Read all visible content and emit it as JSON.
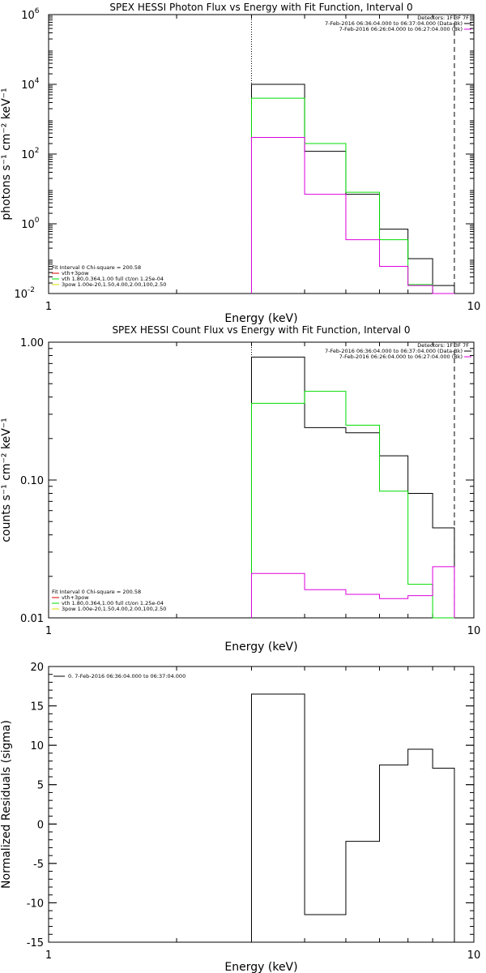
{
  "chart_data": [
    {
      "type": "line",
      "title": "SPEX HESSI Photon Flux vs Energy with Fit Function, Interval 0",
      "xlabel": "Energy (keV)",
      "ylabel": "photons s⁻¹ cm⁻² keV⁻¹",
      "xscale": "log",
      "yscale": "log",
      "xlim": [
        1,
        10
      ],
      "ylim": [
        0.01,
        1000000
      ],
      "xticks": [
        {
          "v": 1,
          "t": "1"
        },
        {
          "v": 10,
          "t": "10"
        }
      ],
      "yticks": [
        {
          "v": 0.01,
          "t": "10",
          "e": "-2"
        },
        {
          "v": 1,
          "t": "10",
          "e": "0"
        },
        {
          "v": 100,
          "t": "10",
          "e": "2"
        },
        {
          "v": 10000,
          "t": "10",
          "e": "4"
        },
        {
          "v": 1000000,
          "t": "10",
          "e": "6"
        }
      ],
      "vlines": [
        {
          "x": 3,
          "style": "dotted"
        },
        {
          "x": 9,
          "style": "dashed"
        }
      ],
      "edges": [
        3,
        4,
        5,
        6,
        7,
        8,
        9
      ],
      "series": [
        {
          "id": "data",
          "color": "#000000",
          "values": [
            10000,
            120,
            7,
            0.7,
            0.1,
            0.017
          ]
        },
        {
          "id": "total",
          "color": "#00dd00",
          "values": [
            4000,
            200,
            8,
            0.35,
            0.018,
            0.01
          ]
        },
        {
          "id": "vth",
          "color": "#dd00dd",
          "values": [
            300,
            7,
            0.35,
            0.06,
            0.017,
            0.01
          ]
        }
      ],
      "legend_top": [
        "Detectors: 1F 3F 7F",
        "7-Feb-2016 06:36:04.000 to 06:37:04.000 (Data-Bk)",
        "7-Feb-2016 06:26:04.000 to 06:27:04.000 (Bk)"
      ],
      "legend_top_colors": [
        "",
        "#000000",
        "#dd00dd"
      ],
      "legend_bottom": [
        "Fit Interval 0    Chi-square = 200.58",
        "vth+3pow",
        "vth 1.80,0.364,1.00  full ct/on 1.25e-04",
        "3pow 1.00e-20,1.50,4.00,2.00,100,2.50"
      ],
      "legend_bottom_colors": [
        "",
        "#dd0000",
        "#00dd00",
        "#dddd00"
      ]
    },
    {
      "type": "line",
      "title": "SPEX HESSI Count Flux vs Energy with Fit Function, Interval 0",
      "xlabel": "Energy (keV)",
      "ylabel": "counts s⁻¹ cm⁻² keV⁻¹",
      "xscale": "log",
      "yscale": "log",
      "xlim": [
        1,
        10
      ],
      "ylim": [
        0.01,
        1.0
      ],
      "xticks": [
        {
          "v": 1,
          "t": "1"
        },
        {
          "v": 10,
          "t": "10"
        }
      ],
      "yticks": [
        {
          "v": 0.01,
          "t": "0.01"
        },
        {
          "v": 0.1,
          "t": "0.10"
        },
        {
          "v": 1.0,
          "t": "1.00"
        }
      ],
      "vlines": [
        {
          "x": 3,
          "style": "dotted"
        },
        {
          "x": 9,
          "style": "dashed"
        }
      ],
      "edges": [
        3,
        4,
        5,
        6,
        7,
        8,
        9
      ],
      "series": [
        {
          "id": "data",
          "color": "#000000",
          "values": [
            0.78,
            0.24,
            0.22,
            0.15,
            0.08,
            0.045
          ]
        },
        {
          "id": "total",
          "color": "#00dd00",
          "values": [
            0.36,
            0.44,
            0.25,
            0.083,
            0.0175,
            0.01
          ]
        },
        {
          "id": "vth",
          "color": "#dd00dd",
          "values": [
            0.021,
            0.016,
            0.0148,
            0.0138,
            0.0145,
            0.0235
          ]
        }
      ],
      "legend_top": [
        "Detectors: 1F 3F 7F",
        "7-Feb-2016 06:36:04.000 to 06:37:04.000 (Data-Bk)",
        "7-Feb-2016 06:26:04.000 to 06:27:04.000 (Bk)"
      ],
      "legend_top_colors": [
        "",
        "#000000",
        "#dd00dd"
      ],
      "legend_bottom": [
        "Fit Interval 0    Chi-square = 200.58",
        "vth+3pow",
        "vth 1.80,0.364,1.00  full ct/on 1.25e-04",
        "3pow 1.00e-20,1.50,4.00,2.00,100,2.50"
      ],
      "legend_bottom_colors": [
        "",
        "#dd0000",
        "#00dd00",
        "#dddd00"
      ]
    },
    {
      "type": "line",
      "title": "",
      "xlabel": "Energy (keV)",
      "ylabel": "Normalized Residuals (sigma)",
      "xscale": "log",
      "yscale": "linear",
      "xlim": [
        1,
        10
      ],
      "ylim": [
        -15,
        20
      ],
      "xticks": [
        {
          "v": 1,
          "t": "1"
        },
        {
          "v": 10,
          "t": "10"
        }
      ],
      "yticks": [
        {
          "v": -15,
          "t": "-15"
        },
        {
          "v": -10,
          "t": "-10"
        },
        {
          "v": -5,
          "t": "-5"
        },
        {
          "v": 0,
          "t": "0"
        },
        {
          "v": 5,
          "t": "5"
        },
        {
          "v": 10,
          "t": "10"
        },
        {
          "v": 15,
          "t": "15"
        },
        {
          "v": 20,
          "t": "20"
        }
      ],
      "vlines": [],
      "edges": [
        3,
        4,
        5,
        6,
        7,
        8,
        9
      ],
      "baseline": -15,
      "series": [
        {
          "id": "residuals",
          "color": "#000000",
          "values": [
            16.5,
            -11.5,
            -2.2,
            7.5,
            9.5,
            7.1
          ]
        }
      ],
      "legend_top_left": "0.  7-Feb-2016 06:36:04.000 to 06:37:04.000",
      "legend_top": [],
      "legend_top_colors": [],
      "legend_bottom": [],
      "legend_bottom_colors": []
    }
  ]
}
